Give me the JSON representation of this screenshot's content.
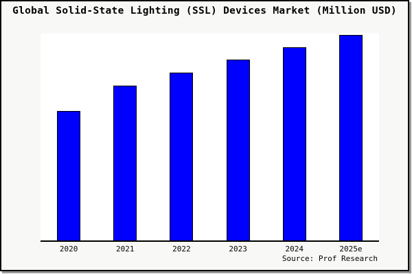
{
  "title": "Global Solid-State Lighting (SSL) Devices Market (Million USD)",
  "source": "Source: Prof Research",
  "chart_data": {
    "type": "bar",
    "title": "Global Solid-State Lighting (SSL) Devices Market (Million USD)",
    "categories": [
      "2020",
      "2021",
      "2022",
      "2023",
      "2024",
      "2025e"
    ],
    "values": [
      62.6,
      74.9,
      81.2,
      87.3,
      93.3,
      99.4
    ],
    "value_scale": "relative bar height as % of plot height; no numeric y-axis, gridlines or data labels are shown in the chart",
    "xlabel": "",
    "ylabel": "",
    "grid": false,
    "legend": false,
    "bar_color": "#0000ff",
    "bar_border_color": "#000000",
    "source_note": "Source: Prof Research"
  },
  "colors": {
    "page_bg": "#f8f8f6",
    "plot_bg": "#ffffff",
    "frame_border": "#000000",
    "axis": "#000000",
    "text": "#000000",
    "shadow": "#999999"
  }
}
